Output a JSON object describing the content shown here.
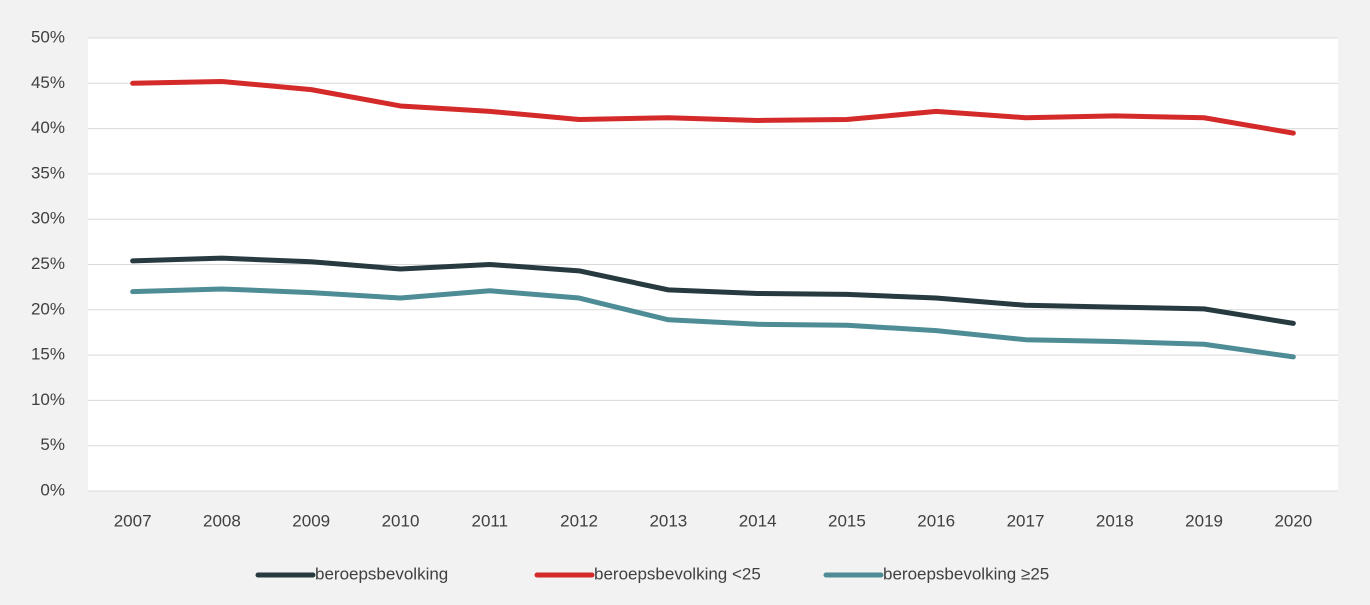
{
  "chart_data": {
    "type": "line",
    "categories": [
      "2007",
      "2008",
      "2009",
      "2010",
      "2011",
      "2012",
      "2013",
      "2014",
      "2015",
      "2016",
      "2017",
      "2018",
      "2019",
      "2020"
    ],
    "series": [
      {
        "name": "beroepsbevolking",
        "color": "#263a40",
        "values": [
          25.4,
          25.7,
          25.3,
          24.5,
          25.0,
          24.3,
          22.2,
          21.8,
          21.7,
          21.3,
          20.5,
          20.3,
          20.1,
          18.5
        ]
      },
      {
        "name": "beroepsbevolking <25",
        "color": "#d42a2a",
        "values": [
          45.0,
          45.2,
          44.3,
          42.5,
          41.9,
          41.0,
          41.2,
          40.9,
          41.0,
          41.9,
          41.2,
          41.4,
          41.2,
          39.5
        ]
      },
      {
        "name": "beroepsbevolking ≥25",
        "color": "#4e8c96",
        "values": [
          22.0,
          22.3,
          21.9,
          21.3,
          22.1,
          21.3,
          18.9,
          18.4,
          18.3,
          17.7,
          16.7,
          16.5,
          16.2,
          14.8
        ]
      }
    ],
    "ylim": [
      0,
      50
    ],
    "yticks": [
      {
        "value": 0,
        "label": "0%"
      },
      {
        "value": 5,
        "label": "5%"
      },
      {
        "value": 10,
        "label": "10%"
      },
      {
        "value": 15,
        "label": "15%"
      },
      {
        "value": 20,
        "label": "20%"
      },
      {
        "value": 25,
        "label": "25%"
      },
      {
        "value": 30,
        "label": "30%"
      },
      {
        "value": 35,
        "label": "35%"
      },
      {
        "value": 40,
        "label": "40%"
      },
      {
        "value": 45,
        "label": "45%"
      },
      {
        "value": 50,
        "label": "50%"
      }
    ],
    "grid": true,
    "legend": "bottom"
  }
}
